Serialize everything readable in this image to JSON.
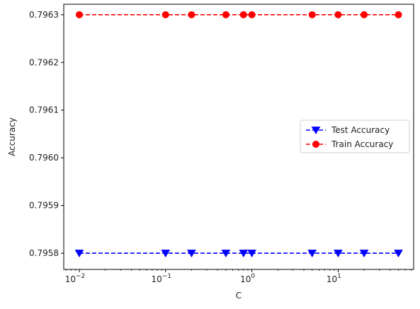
{
  "chart_data": {
    "type": "line",
    "xlabel": "C",
    "ylabel": "Accuracy",
    "xscale": "log",
    "xlim": [
      0.0066,
      75
    ],
    "ylim": [
      0.795766,
      0.796322
    ],
    "x": [
      0.01,
      0.1,
      0.2,
      0.5,
      0.8,
      1,
      5,
      10,
      20,
      50
    ],
    "x_ticks": [
      {
        "value": 0.01,
        "base": "10",
        "exp": "−2"
      },
      {
        "value": 0.1,
        "base": "10",
        "exp": "−1"
      },
      {
        "value": 1,
        "base": "10",
        "exp": "0"
      },
      {
        "value": 10,
        "base": "10",
        "exp": "1"
      }
    ],
    "y_ticks": [
      {
        "value": 0.7958,
        "label": "0.7958"
      },
      {
        "value": 0.7959,
        "label": "0.7959"
      },
      {
        "value": 0.796,
        "label": "0.7960"
      },
      {
        "value": 0.7961,
        "label": "0.7961"
      },
      {
        "value": 0.7962,
        "label": "0.7962"
      },
      {
        "value": 0.7963,
        "label": "0.7963"
      }
    ],
    "grid": false,
    "legend_position": "center-right",
    "series": [
      {
        "name": "Test Accuracy",
        "color": "#0000ff",
        "marker": "triangle-down",
        "linestyle": "dashed",
        "values": [
          0.7958,
          0.7958,
          0.7958,
          0.7958,
          0.7958,
          0.7958,
          0.7958,
          0.7958,
          0.7958,
          0.7958
        ]
      },
      {
        "name": "Train Accuracy",
        "color": "#ff0000",
        "marker": "circle",
        "linestyle": "dashed",
        "values": [
          0.7963,
          0.7963,
          0.7963,
          0.7963,
          0.7963,
          0.7963,
          0.7963,
          0.7963,
          0.7963,
          0.7963
        ]
      }
    ]
  }
}
